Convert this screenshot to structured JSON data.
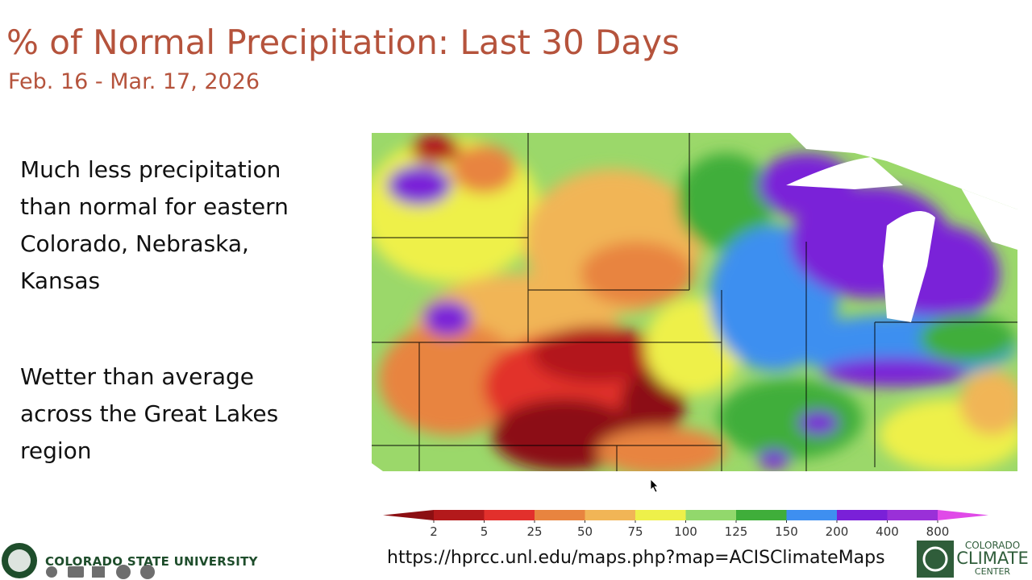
{
  "header": {
    "title": "% of Normal Precipitation: Last 30 Days",
    "subtitle": "Feb. 16 - Mar. 17, 2026"
  },
  "bullets": [
    "Much less precipitation than normal for eastern Colorado, Nebraska, Kansas",
    "Wetter than average across the Great Lakes region"
  ],
  "legend": {
    "ticks": [
      2,
      5,
      25,
      50,
      75,
      100,
      125,
      150,
      200,
      400,
      800
    ],
    "colors": [
      "#8c0f12",
      "#b3191b",
      "#e2302c",
      "#e8843f",
      "#f1b556",
      "#eef04a",
      "#92d86c",
      "#3fae3a",
      "#3e8ff0",
      "#7a20d8",
      "#9a30d8",
      "#e04ae8"
    ]
  },
  "footer": {
    "url": "https://hprcc.unl.edu/maps.php?map=ACISClimateMaps",
    "university": "COLORADO STATE UNIVERSITY",
    "center": [
      "COLORADO",
      "CLIMATE",
      "CENTER"
    ]
  }
}
